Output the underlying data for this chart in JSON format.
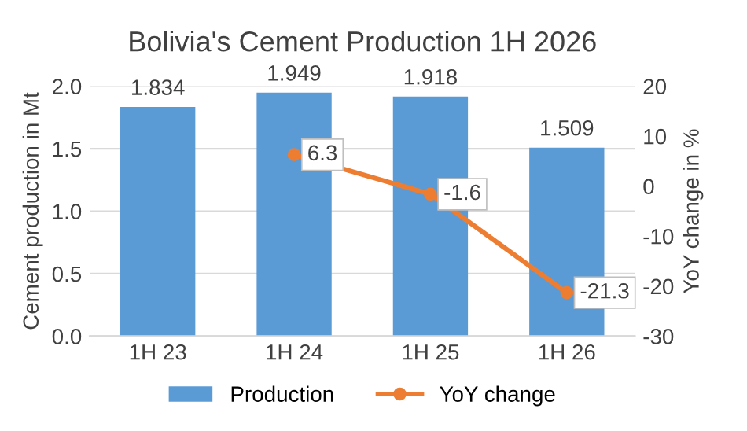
{
  "chart_data": {
    "type": "bar",
    "title": "Bolivia's Cement Production 1H 2026",
    "categories": [
      "1H 23",
      "1H 24",
      "1H 25",
      "1H 26"
    ],
    "series": [
      {
        "name": "Production",
        "color": "#5b9bd5",
        "values": [
          1.834,
          1.949,
          1.918,
          1.509
        ]
      },
      {
        "name": "YoY change",
        "type": "line",
        "axis": "y2",
        "color": "#ed7d31",
        "marker": "circle",
        "values": [
          null,
          6.3,
          -1.6,
          -21.3
        ]
      }
    ],
    "ylabel": "Cement production in Mt",
    "y2label": "YoY change in %",
    "ylim": [
      0,
      2.0
    ],
    "yticks": [
      {
        "value": 0,
        "label": "0.0"
      },
      {
        "value": 0.5,
        "label": "0.5"
      },
      {
        "value": 1,
        "label": "1.0"
      },
      {
        "value": 1.5,
        "label": "1.5"
      },
      {
        "value": 2,
        "label": "2.0"
      }
    ],
    "y2lim": [
      -30,
      20
    ],
    "y2ticks": [
      -30,
      -20,
      -10,
      0,
      10,
      20
    ],
    "grid": "y",
    "legend": "bottom",
    "data_labels": true
  }
}
